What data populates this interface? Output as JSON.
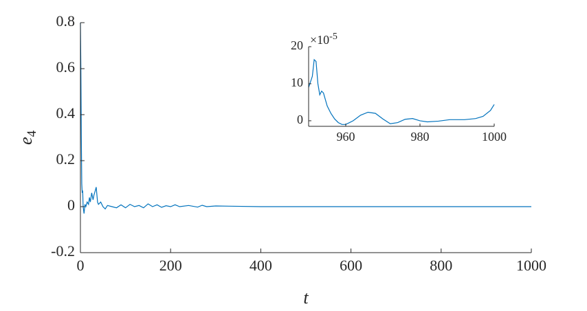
{
  "chart_data": [
    {
      "type": "line",
      "xlabel": "t",
      "ylabel": {
        "text": "e",
        "subscript": "4"
      },
      "xlim": [
        0,
        1000
      ],
      "ylim": [
        -0.2,
        0.8
      ],
      "xticks": [
        0,
        200,
        400,
        600,
        800,
        1000
      ],
      "yticks": [
        -0.2,
        0,
        0.2,
        0.4,
        0.6,
        0.8
      ],
      "color": "#0072bd",
      "x": [
        0,
        1,
        2,
        3,
        4,
        5,
        6,
        8,
        10,
        12,
        15,
        18,
        20,
        22,
        25,
        28,
        30,
        33,
        35,
        38,
        40,
        45,
        50,
        55,
        60,
        70,
        80,
        90,
        100,
        110,
        120,
        130,
        140,
        150,
        160,
        170,
        180,
        190,
        200,
        210,
        220,
        240,
        260,
        270,
        280,
        300,
        330,
        400,
        500,
        600,
        700,
        800,
        900,
        1000
      ],
      "values": [
        0.8,
        0.6,
        0.3,
        0.1,
        0.06,
        0.07,
        0.0,
        -0.03,
        0.01,
        0.0,
        0.02,
        0.01,
        0.04,
        0.02,
        0.06,
        0.03,
        0.05,
        0.07,
        0.085,
        0.02,
        0.01,
        0.02,
        0.0,
        -0.01,
        0.005,
        0.0,
        -0.005,
        0.008,
        -0.005,
        0.01,
        0.0,
        0.005,
        -0.005,
        0.012,
        0.0,
        0.008,
        -0.003,
        0.004,
        0.0,
        0.008,
        0.0,
        0.005,
        -0.002,
        0.006,
        0.0,
        0.003,
        0.002,
        0,
        0,
        0,
        0,
        0,
        0,
        0
      ]
    },
    {
      "type": "line",
      "multiplier": {
        "text": "×10",
        "exponent": "-5"
      },
      "xlim": [
        950,
        1000
      ],
      "ylim": [
        -1.5,
        20
      ],
      "xticks": [
        960,
        980,
        1000
      ],
      "yticks": [
        0,
        10,
        20
      ],
      "color": "#0072bd",
      "x": [
        950,
        951,
        951.5,
        952,
        952.5,
        953,
        953.5,
        954,
        955,
        956,
        957,
        958,
        959,
        960,
        962,
        964,
        966,
        968,
        970,
        972,
        974,
        976,
        978,
        980,
        982,
        985,
        988,
        992,
        995,
        997,
        999,
        1000
      ],
      "values": [
        9,
        12,
        16.5,
        16,
        10,
        7,
        8,
        7.5,
        4,
        2,
        0.5,
        -0.5,
        -1,
        -1,
        0,
        1.5,
        2.3,
        2,
        0.5,
        -0.8,
        -0.5,
        0.4,
        0.6,
        0,
        -0.3,
        -0.1,
        0.3,
        0.3,
        0.6,
        1.2,
        2.8,
        4.4
      ]
    }
  ]
}
